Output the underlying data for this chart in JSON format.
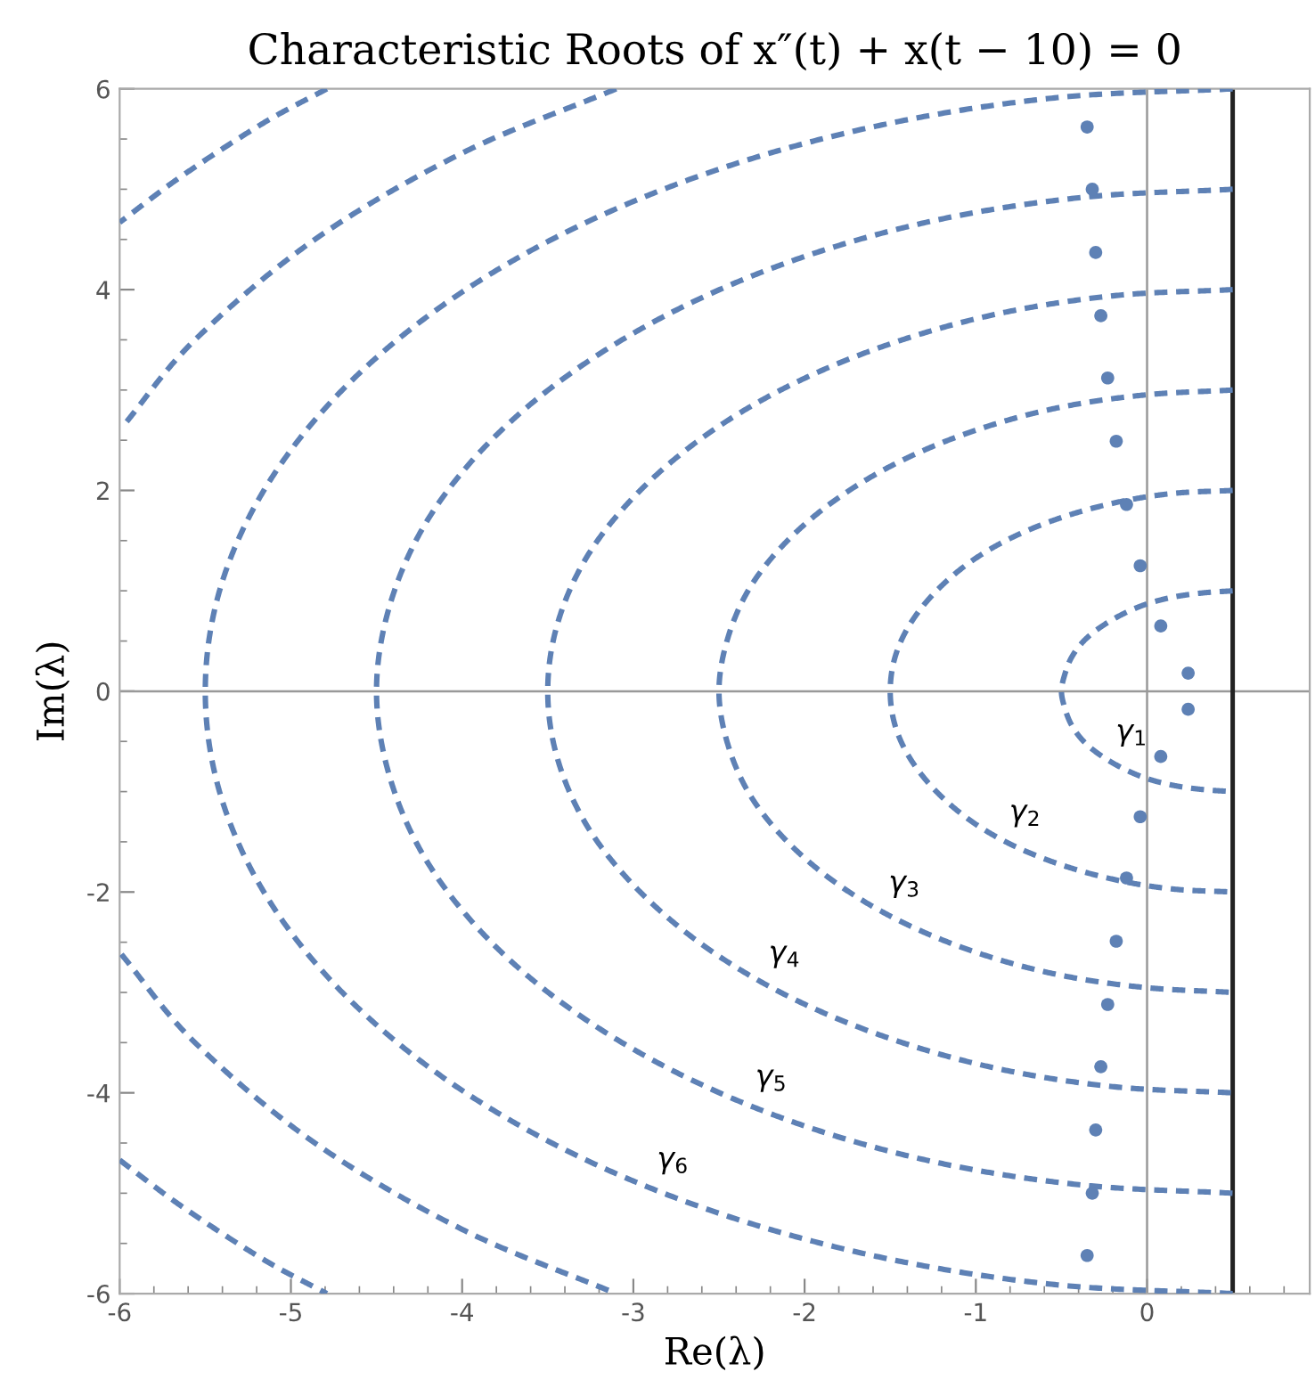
{
  "chart_data": {
    "type": "line",
    "title": "Characteristic Roots of x″(t) + x(t − 10) = 0",
    "xlabel": "Re(λ)",
    "ylabel": "Im(λ)",
    "xlim": [
      -6,
      0.95
    ],
    "ylim": [
      -6,
      6
    ],
    "xticks": [
      -6,
      -5,
      -4,
      -3,
      -2,
      -1,
      0
    ],
    "yticks": [
      -6,
      -4,
      -2,
      0,
      2,
      4,
      6
    ],
    "grid": false,
    "legend": false,
    "line_style": "dashed",
    "series": [
      {
        "name": "γ$_{1}$",
        "color": "#5e81b5",
        "x": [
          0.5,
          0.33,
          0.16,
          0,
          -0.14,
          -0.27,
          -0.37,
          -0.44,
          -0.48,
          -0.5,
          -0.48,
          -0.44,
          -0.37,
          -0.27,
          -0.14,
          0,
          0.16,
          0.33,
          0.5
        ],
        "values": [
          1,
          0.98,
          0.94,
          0.87,
          0.77,
          0.64,
          0.5,
          0.34,
          0.17,
          0,
          -0.17,
          -0.34,
          -0.5,
          -0.64,
          -0.77,
          -0.87,
          -0.94,
          -0.98,
          -1
        ]
      },
      {
        "name": "γ$_{2}$",
        "color": "#5e81b5",
        "x": [
          0.5,
          0.15,
          -0.18,
          -0.5,
          -0.79,
          -1.03,
          -1.23,
          -1.38,
          -1.47,
          -1.5,
          -1.47,
          -1.38,
          -1.23,
          -1.03,
          -0.79,
          -0.5,
          -0.18,
          0.15,
          0.5
        ],
        "values": [
          2,
          1.97,
          1.88,
          1.73,
          1.53,
          1.29,
          1,
          0.68,
          0.35,
          0,
          -0.35,
          -0.68,
          -1,
          -1.29,
          -1.53,
          -1.73,
          -1.88,
          -1.97,
          -2
        ]
      },
      {
        "name": "γ$_{3}$",
        "color": "#5e81b5",
        "x": [
          0.5,
          -0.02,
          -0.53,
          -1,
          -1.43,
          -1.8,
          -2.1,
          -2.32,
          -2.45,
          -2.5,
          -2.45,
          -2.32,
          -2.1,
          -1.8,
          -1.43,
          -1,
          -0.53,
          -0.02,
          0.5
        ],
        "values": [
          3,
          2.95,
          2.82,
          2.6,
          2.3,
          1.93,
          1.5,
          1.03,
          0.52,
          0,
          -0.52,
          -1.03,
          -1.5,
          -1.93,
          -2.3,
          -2.6,
          -2.82,
          -2.95,
          -3
        ]
      },
      {
        "name": "γ$_{4}$",
        "color": "#5e81b5",
        "x": [
          0.5,
          -0.19,
          -0.87,
          -1.5,
          -2.07,
          -2.56,
          -2.96,
          -3.26,
          -3.44,
          -3.5,
          -3.44,
          -3.26,
          -2.96,
          -2.56,
          -2.07,
          -1.5,
          -0.87,
          -0.19,
          0.5
        ],
        "values": [
          4,
          3.94,
          3.76,
          3.46,
          3.06,
          2.57,
          2,
          1.37,
          0.69,
          0,
          -0.69,
          -1.37,
          -2,
          -2.57,
          -3.06,
          -3.46,
          -3.76,
          -3.94,
          -4
        ]
      },
      {
        "name": "γ$_{5}$",
        "color": "#5e81b5",
        "x": [
          0.5,
          -0.37,
          -1.21,
          -2,
          -2.71,
          -3.33,
          -3.83,
          -4.2,
          -4.42,
          -4.5,
          -4.42,
          -4.2,
          -3.83,
          -3.33,
          -2.71,
          -2,
          -1.21,
          -0.37,
          0.5
        ],
        "values": [
          5,
          4.92,
          4.7,
          4.33,
          3.83,
          3.21,
          2.5,
          1.71,
          0.87,
          0,
          -0.87,
          -1.71,
          -2.5,
          -3.21,
          -3.83,
          -4.33,
          -4.7,
          -4.92,
          -5
        ]
      },
      {
        "name": "γ$_{6}$",
        "color": "#5e81b5",
        "x": [
          0.5,
          -0.54,
          -1.55,
          -2.5,
          -3.36,
          -4.1,
          -4.7,
          -5.14,
          -5.41,
          -5.5,
          -5.41,
          -5.14,
          -4.7,
          -4.1,
          -3.36,
          -2.5,
          -1.55,
          -0.54,
          0.5
        ],
        "values": [
          6,
          5.91,
          5.64,
          5.2,
          4.6,
          3.86,
          3,
          2.05,
          1.04,
          0,
          -1.04,
          -2.05,
          -3,
          -3.86,
          -4.6,
          -5.2,
          -5.64,
          -5.91,
          -6
        ]
      },
      {
        "color": "#5e81b5",
        "x": [
          -3.1,
          -4.0,
          -4.86,
          -5.56,
          -5.99
        ],
        "values": [
          6,
          5.36,
          4.5,
          3.5,
          2.62
        ]
      },
      {
        "color": "#5e81b5",
        "x": [
          -5.99,
          -5.56,
          -4.86,
          -4.0,
          -3.1
        ],
        "values": [
          -2.62,
          -3.5,
          -4.5,
          -5.36,
          -6
        ]
      },
      {
        "color": "#5e81b5",
        "x": [
          -4.79,
          -5.16,
          -5.63,
          -6.0
        ],
        "values": [
          6,
          5.66,
          5.14,
          4.67
        ]
      },
      {
        "color": "#5e81b5",
        "x": [
          -6.0,
          -5.63,
          -5.16,
          -4.79
        ],
        "values": [
          -4.67,
          -5.14,
          -5.66,
          -6
        ]
      },
      {
        "type": "scatter",
        "color": "#5e81b5",
        "marker": "circle",
        "x": [
          -0.35,
          -0.32,
          -0.3,
          -0.27,
          -0.23,
          -0.18,
          -0.12,
          -0.04,
          0.08,
          0.24,
          0.24,
          0.08,
          -0.04,
          -0.12,
          -0.18,
          -0.23,
          -0.27,
          -0.3,
          -0.32,
          -0.35
        ],
        "values": [
          5.62,
          5.0,
          4.37,
          3.74,
          3.12,
          2.49,
          1.86,
          1.25,
          0.65,
          0.18,
          -0.18,
          -0.65,
          -1.25,
          -1.86,
          -2.49,
          -3.12,
          -3.74,
          -4.37,
          -5.0,
          -5.62
        ]
      }
    ],
    "ref_lines": [
      {
        "axis": "x",
        "value": 0,
        "color": "#999999"
      },
      {
        "axis": "y",
        "value": 0,
        "color": "#999999"
      },
      {
        "axis": "x",
        "value": 0.5,
        "color": "#222222"
      }
    ]
  }
}
